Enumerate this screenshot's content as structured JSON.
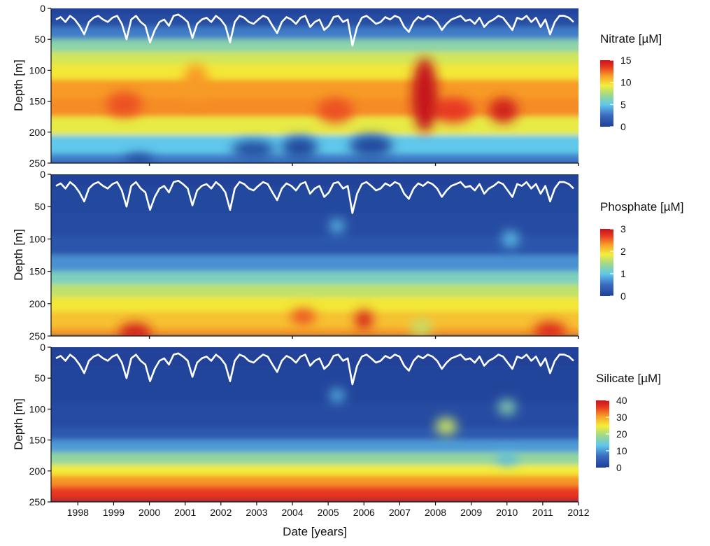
{
  "chart_data": {
    "type": "heatmap",
    "xlabel": "Date [years]",
    "x_ticks": [
      1998,
      1999,
      2000,
      2001,
      2002,
      2003,
      2004,
      2005,
      2006,
      2007,
      2008,
      2009,
      2010,
      2011,
      2012
    ],
    "xlim": [
      1997.25,
      2012.0
    ],
    "mixed_layer_depth_trace": {
      "description": "white line overlaid on all three panels",
      "values_m": [
        18,
        14,
        22,
        12,
        18,
        28,
        42,
        22,
        15,
        12,
        18,
        22,
        15,
        12,
        25,
        50,
        18,
        12,
        22,
        28,
        55,
        35,
        22,
        18,
        28,
        12,
        10,
        15,
        22,
        48,
        25,
        18,
        15,
        22,
        12,
        18,
        28,
        55,
        22,
        12,
        15,
        22,
        25,
        18,
        12,
        15,
        28,
        40,
        22,
        14,
        18,
        25,
        15,
        12,
        30,
        22,
        18,
        35,
        28,
        14,
        12,
        22,
        18,
        60,
        30,
        15,
        12,
        18,
        25,
        22,
        14,
        18,
        12,
        15,
        30,
        38,
        22,
        14,
        18,
        12,
        15,
        22,
        35,
        25,
        18,
        15,
        12,
        20,
        18,
        25,
        15,
        30,
        22,
        18,
        12,
        15,
        25,
        35,
        15,
        18,
        12,
        22,
        15,
        30,
        18,
        42,
        22,
        12,
        12,
        15,
        22
      ]
    },
    "panels": [
      {
        "ylabel": "Depth [m]",
        "y_ticks": [
          0,
          50,
          100,
          150,
          200,
          250
        ],
        "ylim": [
          250,
          0
        ],
        "colorbar": {
          "title": "Nitrate [µM]",
          "ticks": [
            0,
            5,
            10,
            15
          ],
          "range": [
            0,
            15
          ]
        },
        "profile_levels_depth_m": [
          0,
          20,
          40,
          60,
          80,
          100,
          130,
          160,
          190,
          220,
          250
        ],
        "profile_values": [
          0.3,
          0.8,
          3.0,
          6.5,
          8.5,
          9.5,
          11.5,
          11.8,
          9.0,
          5.0,
          3.0
        ],
        "features": [
          {
            "x": 2007.7,
            "y": 140,
            "value": 15,
            "radius_years": 0.35,
            "radius_m": 60
          },
          {
            "x": 2008.5,
            "y": 165,
            "value": 13.5,
            "radius_years": 0.55,
            "radius_m": 20
          },
          {
            "x": 2009.9,
            "y": 165,
            "value": 14.5,
            "radius_years": 0.4,
            "radius_m": 20
          },
          {
            "x": 1999.3,
            "y": 155,
            "value": 13,
            "radius_years": 0.5,
            "radius_m": 20
          },
          {
            "x": 2005.2,
            "y": 165,
            "value": 13,
            "radius_years": 0.5,
            "radius_m": 20
          },
          {
            "x": 2001.3,
            "y": 120,
            "value": 11.5,
            "radius_years": 0.35,
            "radius_m": 30
          },
          {
            "x": 2004.2,
            "y": 225,
            "value": 0.5,
            "radius_years": 0.5,
            "radius_m": 18
          },
          {
            "x": 2006.2,
            "y": 222,
            "value": 0.5,
            "radius_years": 0.6,
            "radius_m": 18
          },
          {
            "x": 2002.9,
            "y": 228,
            "value": 0.5,
            "radius_years": 0.6,
            "radius_m": 14
          },
          {
            "x": 1999.7,
            "y": 245,
            "value": 0.5,
            "radius_years": 0.4,
            "radius_m": 10
          }
        ]
      },
      {
        "ylabel": "Depth [m]",
        "y_ticks": [
          0,
          50,
          100,
          150,
          200,
          250
        ],
        "ylim": [
          250,
          0
        ],
        "colorbar": {
          "title": "Phosphate [µM]",
          "ticks": [
            0,
            1,
            2,
            3
          ],
          "range": [
            0,
            3
          ]
        },
        "profile_levels_depth_m": [
          0,
          40,
          80,
          110,
          140,
          160,
          180,
          200,
          225,
          250
        ],
        "profile_values": [
          0.05,
          0.1,
          0.15,
          0.25,
          0.7,
          1.2,
          1.6,
          1.9,
          2.1,
          2.3
        ],
        "features": [
          {
            "x": 2005.25,
            "y": 80,
            "value": 1.0,
            "radius_years": 0.2,
            "radius_m": 10
          },
          {
            "x": 2010.1,
            "y": 100,
            "value": 1.0,
            "radius_years": 0.22,
            "radius_m": 12
          },
          {
            "x": 1999.6,
            "y": 245,
            "value": 2.9,
            "radius_years": 0.45,
            "radius_m": 15
          },
          {
            "x": 2006.0,
            "y": 225,
            "value": 2.85,
            "radius_years": 0.25,
            "radius_m": 15
          },
          {
            "x": 2004.3,
            "y": 220,
            "value": 2.6,
            "radius_years": 0.35,
            "radius_m": 12
          },
          {
            "x": 2011.2,
            "y": 242,
            "value": 2.8,
            "radius_years": 0.45,
            "radius_m": 14
          },
          {
            "x": 2007.6,
            "y": 237,
            "value": 1.6,
            "radius_years": 0.3,
            "radius_m": 12
          }
        ]
      },
      {
        "ylabel": "Depth [m]",
        "y_ticks": [
          0,
          50,
          100,
          150,
          200,
          250
        ],
        "ylim": [
          250,
          0
        ],
        "colorbar": {
          "title": "Silicate [µM]",
          "ticks": [
            0,
            10,
            20,
            30,
            40
          ],
          "range": [
            0,
            40
          ]
        },
        "profile_levels_depth_m": [
          0,
          60,
          120,
          140,
          160,
          180,
          200,
          215,
          235,
          250
        ],
        "profile_values": [
          0.5,
          1,
          2,
          4,
          10,
          18,
          25,
          31,
          36,
          38
        ],
        "features": [
          {
            "x": 2005.25,
            "y": 78,
            "value": 13,
            "radius_years": 0.2,
            "radius_m": 10
          },
          {
            "x": 2010.0,
            "y": 97,
            "value": 17,
            "radius_years": 0.25,
            "radius_m": 12
          },
          {
            "x": 2008.3,
            "y": 128,
            "value": 22,
            "radius_years": 0.3,
            "radius_m": 14
          },
          {
            "x": 2010.0,
            "y": 180,
            "value": 12,
            "radius_years": 0.3,
            "radius_m": 10
          }
        ]
      }
    ]
  }
}
